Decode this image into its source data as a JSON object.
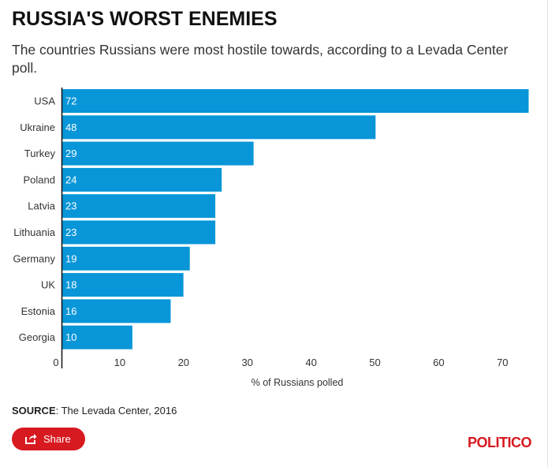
{
  "title": "RUSSIA'S WORST ENEMIES",
  "subtitle": "The countries Russians were most hostile towards, according to a Levada Center poll.",
  "source_label": "SOURCE",
  "source_text": ": The Levada Center, 2016",
  "share_label": "Share",
  "brand": "POLITICO",
  "colors": {
    "bar": "#0896d8",
    "accent": "#d71920"
  },
  "chart_data": {
    "type": "bar",
    "orientation": "horizontal",
    "title": "RUSSIA'S WORST ENEMIES",
    "xlabel": "% of Russians polled",
    "ylabel": "",
    "categories": [
      "USA",
      "Ukraine",
      "Turkey",
      "Poland",
      "Latvia",
      "Lithuania",
      "Germany",
      "UK",
      "Estonia",
      "Georgia"
    ],
    "values": [
      72,
      48,
      29,
      24,
      23,
      23,
      19,
      18,
      16,
      10
    ],
    "xlim": [
      0,
      72
    ],
    "xticks": [
      0,
      10,
      20,
      30,
      40,
      50,
      60,
      70
    ],
    "grid": false
  }
}
